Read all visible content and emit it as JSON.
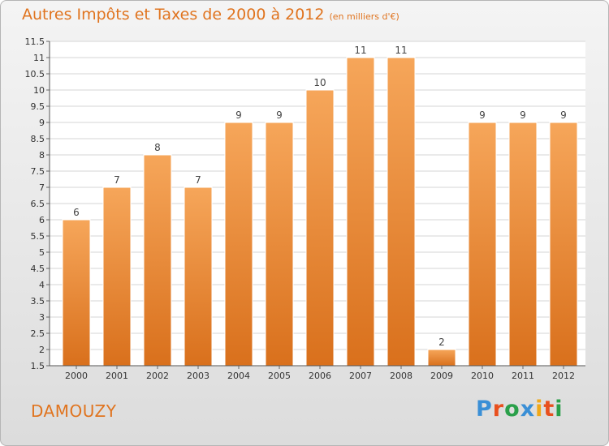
{
  "header": {
    "title": "Autres Impôts et Taxes de 2000 à 2012",
    "unit": "(en milliers d'€)"
  },
  "footer": {
    "commune": "DAMOUZY",
    "brand": "Proxiti",
    "brand_colors": [
      "#3a8fd6",
      "#e8501e",
      "#2aa04a",
      "#3a8fd6",
      "#f0a818",
      "#e8501e",
      "#2aa04a"
    ]
  },
  "colors": {
    "bar_top": "#f6a65a",
    "bar_bottom": "#d9701c",
    "accent": "#e0741f"
  },
  "chart_data": {
    "type": "bar",
    "title": "Autres Impôts et Taxes de 2000 à 2012",
    "subtitle": "(en milliers d'€)",
    "categories": [
      "2000",
      "2001",
      "2002",
      "2003",
      "2004",
      "2005",
      "2006",
      "2007",
      "2008",
      "2009",
      "2010",
      "2011",
      "2012"
    ],
    "values": [
      6,
      7,
      8,
      7,
      9,
      9,
      10,
      11,
      11,
      2,
      9,
      9,
      9
    ],
    "ylim": [
      1.5,
      11.5
    ],
    "yticks": [
      "1.5",
      "2",
      "2.5",
      "3",
      "3.5",
      "4",
      "4.5",
      "5",
      "5.5",
      "6",
      "6.5",
      "7",
      "7.5",
      "8",
      "8.5",
      "9",
      "9.5",
      "10",
      "10.5",
      "11",
      "11.5"
    ],
    "grid": true,
    "data_labels": true
  }
}
